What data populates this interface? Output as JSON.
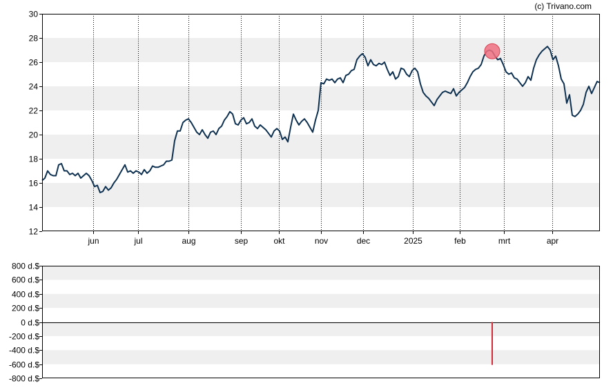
{
  "credit": "(c) Trivano.com",
  "colors": {
    "line": "#0d3050",
    "band": "#efefef",
    "frame": "#000000",
    "marker_fill": "#f07080",
    "marker_stroke": "#d84050",
    "insider_bar": "#d42a38"
  },
  "chart_data": [
    {
      "type": "line",
      "ylim": [
        12,
        30
      ],
      "yticks": [
        12,
        14,
        16,
        18,
        20,
        22,
        24,
        26,
        28,
        30
      ],
      "shaded_bands": [
        [
          14,
          16
        ],
        [
          18,
          20
        ],
        [
          22,
          24
        ],
        [
          26,
          28
        ]
      ],
      "month_labels": [
        {
          "label": "jun",
          "t": 74
        },
        {
          "label": "jul",
          "t": 139
        },
        {
          "label": "aug",
          "t": 212
        },
        {
          "label": "sep",
          "t": 288
        },
        {
          "label": "okt",
          "t": 343
        },
        {
          "label": "nov",
          "t": 404
        },
        {
          "label": "dec",
          "t": 465
        },
        {
          "label": "2025",
          "t": 537
        },
        {
          "label": "feb",
          "t": 605
        },
        {
          "label": "mrt",
          "t": 669
        },
        {
          "label": "apr",
          "t": 739
        }
      ],
      "grid": "dotted vertical at month starts",
      "t_range": [
        0,
        808
      ],
      "series": [
        {
          "points": [
            [
              0,
              16.2
            ],
            [
              4,
              16.4
            ],
            [
              8,
              17.0
            ],
            [
              12,
              16.7
            ],
            [
              16,
              16.6
            ],
            [
              20,
              16.6
            ],
            [
              24,
              17.5
            ],
            [
              28,
              17.6
            ],
            [
              32,
              17.0
            ],
            [
              36,
              17.0
            ],
            [
              40,
              16.7
            ],
            [
              44,
              16.8
            ],
            [
              48,
              16.6
            ],
            [
              52,
              16.8
            ],
            [
              56,
              16.4
            ],
            [
              60,
              16.6
            ],
            [
              64,
              16.8
            ],
            [
              68,
              16.6
            ],
            [
              72,
              16.2
            ],
            [
              76,
              15.7
            ],
            [
              80,
              15.8
            ],
            [
              84,
              15.2
            ],
            [
              88,
              15.3
            ],
            [
              92,
              15.7
            ],
            [
              96,
              15.4
            ],
            [
              100,
              15.6
            ],
            [
              104,
              16.0
            ],
            [
              108,
              16.3
            ],
            [
              112,
              16.7
            ],
            [
              116,
              17.1
            ],
            [
              120,
              17.5
            ],
            [
              124,
              16.9
            ],
            [
              128,
              17.0
            ],
            [
              132,
              16.8
            ],
            [
              136,
              17.0
            ],
            [
              140,
              16.9
            ],
            [
              144,
              16.7
            ],
            [
              148,
              17.1
            ],
            [
              152,
              16.8
            ],
            [
              156,
              17.0
            ],
            [
              160,
              17.4
            ],
            [
              164,
              17.3
            ],
            [
              168,
              17.3
            ],
            [
              172,
              17.4
            ],
            [
              176,
              17.5
            ],
            [
              180,
              17.8
            ],
            [
              184,
              17.8
            ],
            [
              188,
              17.9
            ],
            [
              192,
              19.5
            ],
            [
              196,
              20.3
            ],
            [
              200,
              20.3
            ],
            [
              204,
              21.0
            ],
            [
              208,
              21.2
            ],
            [
              212,
              21.3
            ],
            [
              216,
              21.0
            ],
            [
              220,
              20.6
            ],
            [
              224,
              20.2
            ],
            [
              228,
              20.0
            ],
            [
              232,
              20.4
            ],
            [
              236,
              20.0
            ],
            [
              240,
              19.7
            ],
            [
              244,
              20.2
            ],
            [
              248,
              20.3
            ],
            [
              252,
              20.0
            ],
            [
              256,
              20.5
            ],
            [
              260,
              20.7
            ],
            [
              264,
              21.2
            ],
            [
              268,
              21.5
            ],
            [
              272,
              21.9
            ],
            [
              276,
              21.7
            ],
            [
              280,
              20.9
            ],
            [
              284,
              20.8
            ],
            [
              288,
              21.2
            ],
            [
              292,
              21.4
            ],
            [
              296,
              20.9
            ],
            [
              300,
              21.0
            ],
            [
              304,
              21.3
            ],
            [
              308,
              20.7
            ],
            [
              312,
              20.5
            ],
            [
              316,
              20.8
            ],
            [
              320,
              20.6
            ],
            [
              324,
              20.4
            ],
            [
              328,
              20.1
            ],
            [
              332,
              19.8
            ],
            [
              336,
              20.3
            ],
            [
              340,
              20.5
            ],
            [
              344,
              20.3
            ],
            [
              348,
              19.6
            ],
            [
              352,
              19.8
            ],
            [
              356,
              19.4
            ],
            [
              360,
              20.6
            ],
            [
              364,
              21.7
            ],
            [
              368,
              21.2
            ],
            [
              372,
              20.8
            ],
            [
              376,
              21.1
            ],
            [
              380,
              21.3
            ],
            [
              384,
              21.0
            ],
            [
              388,
              20.6
            ],
            [
              392,
              20.2
            ],
            [
              396,
              21.2
            ],
            [
              400,
              22.0
            ],
            [
              404,
              24.3
            ],
            [
              408,
              24.2
            ],
            [
              412,
              24.6
            ],
            [
              416,
              24.5
            ],
            [
              420,
              24.6
            ],
            [
              424,
              24.3
            ],
            [
              428,
              24.6
            ],
            [
              432,
              24.7
            ],
            [
              436,
              24.3
            ],
            [
              440,
              24.9
            ],
            [
              444,
              25.0
            ],
            [
              448,
              25.3
            ],
            [
              452,
              25.4
            ],
            [
              456,
              26.2
            ],
            [
              460,
              26.5
            ],
            [
              464,
              26.7
            ],
            [
              468,
              26.4
            ],
            [
              472,
              25.7
            ],
            [
              476,
              26.2
            ],
            [
              480,
              25.8
            ],
            [
              484,
              25.7
            ],
            [
              488,
              25.9
            ],
            [
              492,
              25.8
            ],
            [
              496,
              26.0
            ],
            [
              500,
              25.4
            ],
            [
              504,
              24.9
            ],
            [
              508,
              25.2
            ],
            [
              512,
              24.6
            ],
            [
              516,
              24.8
            ],
            [
              520,
              25.5
            ],
            [
              524,
              25.4
            ],
            [
              528,
              25.0
            ],
            [
              532,
              24.8
            ],
            [
              536,
              25.3
            ],
            [
              540,
              25.5
            ],
            [
              544,
              25.2
            ],
            [
              548,
              24.2
            ],
            [
              552,
              23.5
            ],
            [
              556,
              23.2
            ],
            [
              560,
              23.0
            ],
            [
              564,
              22.7
            ],
            [
              568,
              22.4
            ],
            [
              572,
              22.9
            ],
            [
              576,
              23.2
            ],
            [
              580,
              23.5
            ],
            [
              584,
              23.6
            ],
            [
              588,
              23.5
            ],
            [
              592,
              23.4
            ],
            [
              596,
              23.8
            ],
            [
              600,
              23.2
            ],
            [
              604,
              23.5
            ],
            [
              608,
              23.7
            ],
            [
              612,
              23.9
            ],
            [
              616,
              24.3
            ],
            [
              620,
              24.8
            ],
            [
              624,
              25.2
            ],
            [
              628,
              25.4
            ],
            [
              632,
              25.5
            ],
            [
              636,
              25.8
            ],
            [
              640,
              26.5
            ],
            [
              644,
              26.9
            ],
            [
              648,
              27.0
            ],
            [
              652,
              26.9
            ],
            [
              656,
              26.5
            ],
            [
              660,
              26.2
            ],
            [
              664,
              26.3
            ],
            [
              668,
              25.8
            ],
            [
              672,
              25.2
            ],
            [
              676,
              25.0
            ],
            [
              680,
              25.1
            ],
            [
              684,
              24.7
            ],
            [
              688,
              24.6
            ],
            [
              692,
              24.3
            ],
            [
              696,
              24.0
            ],
            [
              700,
              24.3
            ],
            [
              704,
              24.8
            ],
            [
              708,
              24.5
            ],
            [
              712,
              25.5
            ],
            [
              716,
              26.2
            ],
            [
              720,
              26.6
            ],
            [
              724,
              26.9
            ],
            [
              728,
              27.1
            ],
            [
              732,
              27.3
            ],
            [
              736,
              27.0
            ],
            [
              740,
              26.2
            ],
            [
              744,
              26.5
            ],
            [
              748,
              25.7
            ],
            [
              752,
              24.6
            ],
            [
              756,
              24.2
            ],
            [
              760,
              22.6
            ],
            [
              764,
              23.3
            ],
            [
              768,
              21.6
            ],
            [
              772,
              21.5
            ],
            [
              776,
              21.7
            ],
            [
              780,
              22.0
            ],
            [
              784,
              22.5
            ],
            [
              788,
              23.5
            ],
            [
              792,
              24.0
            ],
            [
              796,
              23.4
            ],
            [
              800,
              23.9
            ],
            [
              804,
              24.4
            ],
            [
              808,
              24.3
            ]
          ]
        }
      ],
      "markers": [
        {
          "t": 652,
          "y": 26.9
        }
      ]
    },
    {
      "type": "bar",
      "ylim": [
        -800,
        800
      ],
      "yticks": [
        -800,
        -600,
        -400,
        -200,
        0,
        200,
        400,
        600,
        800
      ],
      "ytick_labels": [
        "-800 d.$",
        "-600 d.$",
        "-400 d.$",
        "-200 d.$",
        "0 d.$",
        "200 d.$",
        "400 d.$",
        "600 d.$",
        "800 d.$"
      ],
      "shaded_bands": [
        [
          -600,
          -400
        ],
        [
          -200,
          0
        ],
        [
          200,
          400
        ],
        [
          600,
          800
        ]
      ],
      "t_range": [
        0,
        808
      ],
      "values": [
        {
          "t": 652,
          "value": -610
        }
      ]
    }
  ]
}
